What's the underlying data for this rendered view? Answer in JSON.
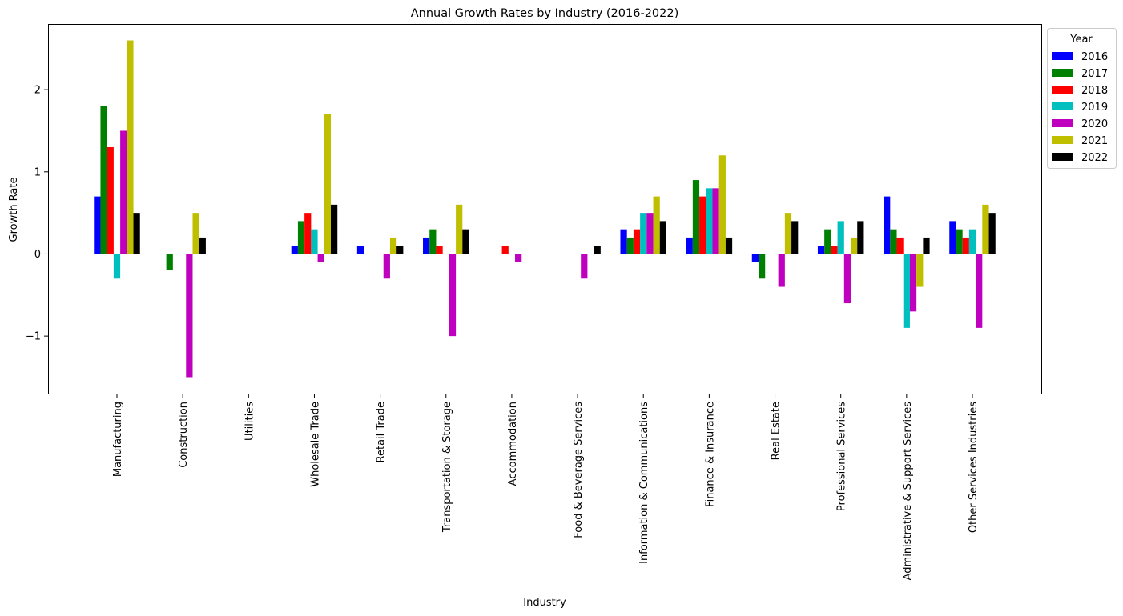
{
  "chart_data": {
    "type": "bar",
    "title": "Annual Growth Rates by Industry (2016-2022)",
    "xlabel": "Industry",
    "ylabel": "Growth Rate",
    "ylim": [
      -1.7,
      2.8
    ],
    "yticks": [
      -1,
      0,
      1,
      2
    ],
    "ytick_labels": [
      "−1",
      "0",
      "1",
      "2"
    ],
    "grid": false,
    "legend": {
      "title": "Year",
      "placement": "outside-top-right"
    },
    "categories": [
      "Manufacturing",
      "Construction",
      "Utilities",
      "Wholesale Trade",
      "Retail Trade",
      "Transportation & Storage",
      "Accommodation",
      "Food & Beverage Services",
      "Information & Communications",
      "Finance & Insurance",
      "Real Estate",
      "Professional Services",
      "Administrative & Support Services",
      "Other Services Industries"
    ],
    "series": [
      {
        "name": "2016",
        "color": "#0000ff",
        "values": [
          0.7,
          0,
          0,
          0.1,
          0.1,
          0.2,
          0,
          0,
          0.3,
          0.2,
          -0.1,
          0.1,
          0.7,
          0.4
        ]
      },
      {
        "name": "2017",
        "color": "#008000",
        "values": [
          1.8,
          -0.2,
          0,
          0.4,
          0,
          0.3,
          0,
          0,
          0.2,
          0.9,
          -0.3,
          0.3,
          0.3,
          0.3
        ]
      },
      {
        "name": "2018",
        "color": "#ff0000",
        "values": [
          1.3,
          0,
          0,
          0.5,
          0,
          0.1,
          0.1,
          0,
          0.3,
          0.7,
          0,
          0.1,
          0.2,
          0.2
        ]
      },
      {
        "name": "2019",
        "color": "#00bfbf",
        "values": [
          -0.3,
          0,
          0,
          0.3,
          0,
          0,
          0,
          0,
          0.5,
          0.8,
          0,
          0.4,
          -0.9,
          0.3
        ]
      },
      {
        "name": "2020",
        "color": "#bf00bf",
        "values": [
          1.5,
          -1.5,
          0,
          -0.1,
          -0.3,
          -1.0,
          -0.1,
          -0.3,
          0.5,
          0.8,
          -0.4,
          -0.6,
          -0.7,
          -0.9
        ]
      },
      {
        "name": "2021",
        "color": "#bfbf00",
        "values": [
          2.6,
          0.5,
          0,
          1.7,
          0.2,
          0.6,
          0,
          0,
          0.7,
          1.2,
          0.5,
          0.2,
          -0.4,
          0.6
        ]
      },
      {
        "name": "2022",
        "color": "#000000",
        "values": [
          0.5,
          0.2,
          0,
          0.6,
          0.1,
          0.3,
          0,
          0.1,
          0.4,
          0.2,
          0.4,
          0.4,
          0.2,
          0.5
        ]
      }
    ]
  }
}
